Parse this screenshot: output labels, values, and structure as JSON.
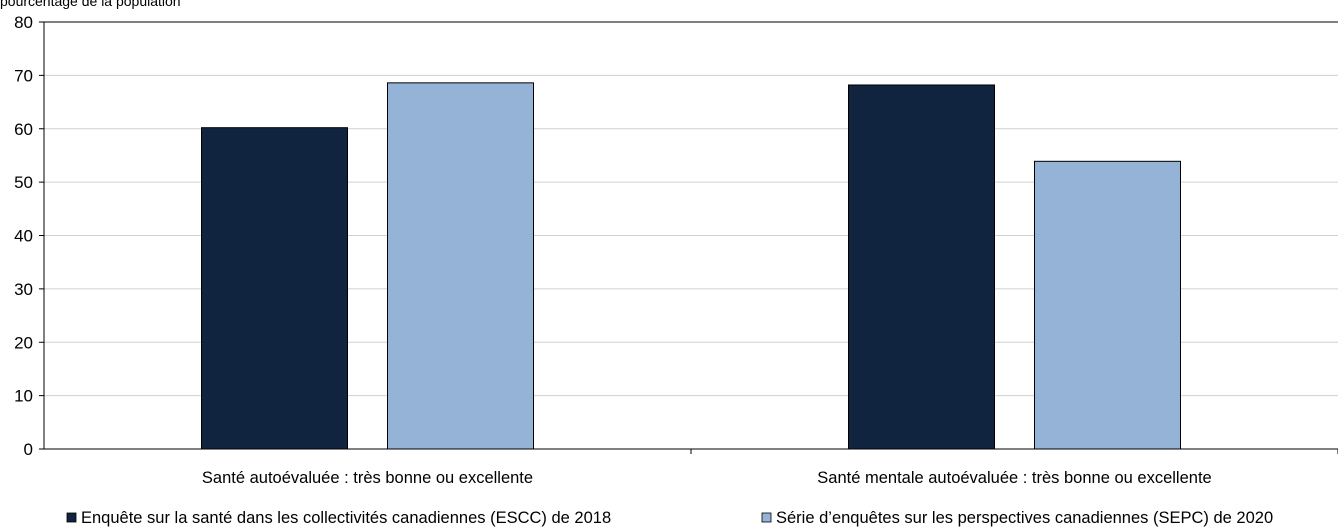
{
  "chart_data": {
    "type": "bar",
    "ylabel": "pourcentage de la population",
    "ylim": [
      0,
      80
    ],
    "yticks": [
      0,
      10,
      20,
      30,
      40,
      50,
      60,
      70,
      80
    ],
    "grid": true,
    "legend_position": "bottom",
    "categories": [
      "Santé autoévaluée : très bonne ou excellente",
      "Santé mentale autoévaluée : très bonne ou excellente"
    ],
    "series": [
      {
        "name": "Enquête sur la santé dans les collectivités canadiennes (ESCC) de 2018",
        "values": [
          60.2,
          68.2
        ],
        "color": "#10243f"
      },
      {
        "name": "Série d’enquêtes sur les perspectives canadiennes (SEPC) de 2020",
        "values": [
          68.6,
          53.9
        ],
        "color": "#95b3d7"
      }
    ]
  }
}
